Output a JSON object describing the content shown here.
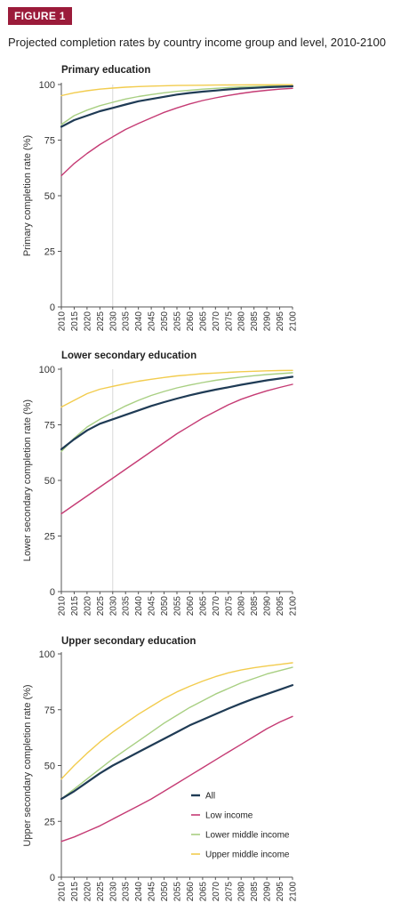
{
  "figure": {
    "label": "FIGURE 1",
    "title": "Projected completion rates by country income group and level, 2010-2100"
  },
  "colors": {
    "All": "#1f3b55",
    "Low income": "#c53b74",
    "Lower middle income": "#a8cf82",
    "Upper middle income": "#f2cc4e"
  },
  "chart_data": [
    {
      "type": "line",
      "title": "Primary education",
      "ylabel": "Primary completion rate (%)",
      "ylim": [
        0,
        100
      ],
      "yticks": [
        0,
        25,
        50,
        75,
        100
      ],
      "x": [
        2010,
        2015,
        2020,
        2025,
        2030,
        2035,
        2040,
        2045,
        2050,
        2055,
        2060,
        2065,
        2070,
        2075,
        2080,
        2085,
        2090,
        2095,
        2100
      ],
      "xlim": [
        2010,
        2100
      ],
      "grid": false,
      "reference_line_x": 2030,
      "series": [
        {
          "name": "All",
          "values": [
            81,
            84,
            86,
            88,
            89.5,
            91,
            92.5,
            93.5,
            94.5,
            95.5,
            96.2,
            96.8,
            97.3,
            97.8,
            98.2,
            98.5,
            98.8,
            99,
            99.2
          ]
        },
        {
          "name": "Low income",
          "values": [
            59,
            64.5,
            69,
            73,
            76.5,
            79.8,
            82.5,
            85,
            87.5,
            89.5,
            91.3,
            92.8,
            94,
            95.1,
            96,
            96.8,
            97.4,
            97.9,
            98.3
          ]
        },
        {
          "name": "Lower middle income",
          "values": [
            82,
            86,
            88.5,
            90.5,
            92,
            93.5,
            94.6,
            95.5,
            96.3,
            96.9,
            97.4,
            97.9,
            98.3,
            98.6,
            98.9,
            99.1,
            99.3,
            99.4,
            99.5
          ]
        },
        {
          "name": "Upper middle income",
          "values": [
            95,
            96.3,
            97.2,
            97.9,
            98.4,
            98.8,
            99.1,
            99.3,
            99.45,
            99.55,
            99.65,
            99.7,
            99.75,
            99.8,
            99.83,
            99.86,
            99.88,
            99.9,
            99.92
          ]
        }
      ]
    },
    {
      "type": "line",
      "title": "Lower secondary education",
      "ylabel": "Lower secondary completion rate (%)",
      "ylim": [
        0,
        100
      ],
      "yticks": [
        0,
        25,
        50,
        75,
        100
      ],
      "x": [
        2010,
        2015,
        2020,
        2025,
        2030,
        2035,
        2040,
        2045,
        2050,
        2055,
        2060,
        2065,
        2070,
        2075,
        2080,
        2085,
        2090,
        2095,
        2100
      ],
      "xlim": [
        2010,
        2100
      ],
      "grid": false,
      "reference_line_x": 2030,
      "series": [
        {
          "name": "All",
          "values": [
            64,
            68.5,
            72.5,
            75.5,
            77.5,
            79.5,
            81.5,
            83.5,
            85.2,
            86.8,
            88.3,
            89.6,
            90.8,
            91.9,
            93,
            94,
            95,
            95.8,
            96.6
          ]
        },
        {
          "name": "Low income",
          "values": [
            35,
            39,
            43,
            47,
            51,
            55,
            59,
            63,
            67,
            71,
            74.5,
            78,
            81,
            84,
            86.5,
            88.5,
            90.3,
            91.8,
            93.2
          ]
        },
        {
          "name": "Lower middle income",
          "values": [
            63,
            69,
            74,
            77.5,
            80.5,
            83.5,
            86,
            88.2,
            90,
            91.6,
            92.9,
            94,
            95,
            95.8,
            96.5,
            97.1,
            97.6,
            98,
            98.4
          ]
        },
        {
          "name": "Upper middle income",
          "values": [
            83,
            86,
            89,
            91,
            92.3,
            93.5,
            94.6,
            95.5,
            96.3,
            97,
            97.5,
            98,
            98.3,
            98.6,
            98.9,
            99.1,
            99.3,
            99.4,
            99.5
          ]
        }
      ]
    },
    {
      "type": "line",
      "title": "Upper secondary education",
      "ylabel": "Upper secondary completion rate (%)",
      "ylim": [
        0,
        100
      ],
      "yticks": [
        0,
        25,
        50,
        75,
        100
      ],
      "x": [
        2010,
        2015,
        2020,
        2025,
        2030,
        2035,
        2040,
        2045,
        2050,
        2055,
        2060,
        2065,
        2070,
        2075,
        2080,
        2085,
        2090,
        2095,
        2100
      ],
      "xlim": [
        2010,
        2100
      ],
      "grid": false,
      "legend": "bottom-right",
      "series": [
        {
          "name": "All",
          "values": [
            35,
            38.5,
            42.5,
            46.5,
            50,
            53,
            56,
            59,
            62,
            65,
            68,
            70.5,
            73,
            75.5,
            77.8,
            80,
            82,
            84,
            86
          ]
        },
        {
          "name": "Low income",
          "values": [
            16,
            18,
            20.5,
            23,
            26,
            29,
            32,
            35,
            38.5,
            42,
            45.5,
            49,
            52.5,
            56,
            59.5,
            63,
            66.5,
            69.5,
            72
          ]
        },
        {
          "name": "Lower middle income",
          "values": [
            35,
            39.5,
            44,
            48.5,
            53,
            57,
            61,
            65,
            69,
            72.5,
            76,
            79,
            82,
            84.5,
            87,
            89,
            91,
            92.5,
            94
          ]
        },
        {
          "name": "Upper middle income",
          "values": [
            44,
            50,
            55.5,
            60.5,
            65,
            69,
            73,
            76.5,
            80,
            83,
            85.5,
            87.8,
            89.8,
            91.5,
            92.8,
            93.8,
            94.6,
            95.3,
            96
          ]
        }
      ]
    }
  ]
}
